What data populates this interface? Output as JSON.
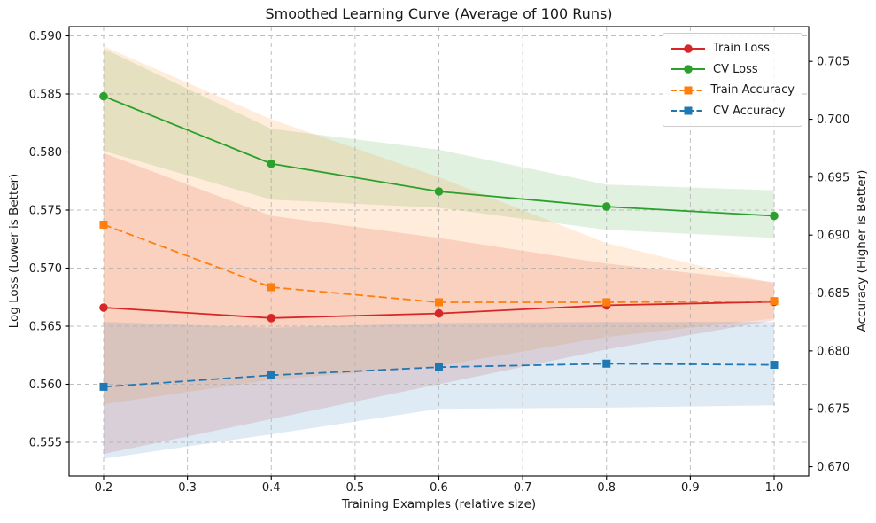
{
  "figure": {
    "title": "Smoothed Learning Curve (Average of 100 Runs)",
    "xlabel": "Training Examples (relative size)",
    "ylabel_left": "Log Loss (Lower is Better)",
    "ylabel_right": "Accuracy (Higher is Better)"
  },
  "colors": {
    "train_loss": "#d62728",
    "cv_loss": "#2ca02c",
    "train_accuracy": "#ff7f0e",
    "cv_accuracy": "#1f77b4",
    "grid": "#b0b0b0",
    "spine": "#000000",
    "text": "#1a1a1a",
    "legend_border": "#cccccc"
  },
  "chart_data": {
    "type": "line",
    "title": "Smoothed Learning Curve (Average of 100 Runs)",
    "xlabel": "Training Examples (relative size)",
    "ylabel_left": "Log Loss (Lower is Better)",
    "ylabel_right": "Accuracy (Higher is Better)",
    "grid": true,
    "legend_position": "upper right",
    "band_alpha": 0.15,
    "x": [
      0.2,
      0.4,
      0.6,
      0.8,
      1.0
    ],
    "x_ticks": [
      0.2,
      0.3,
      0.4,
      0.5,
      0.6,
      0.7,
      0.8,
      0.9,
      1.0
    ],
    "x_range": [
      0.1588,
      1.0412
    ],
    "left_ticks": [
      0.555,
      0.56,
      0.565,
      0.57,
      0.575,
      0.58,
      0.585,
      0.59
    ],
    "left_range": [
      0.5521,
      0.5908
    ],
    "right_ticks": [
      0.67,
      0.675,
      0.68,
      0.685,
      0.69,
      0.695,
      0.7,
      0.705
    ],
    "right_range": [
      0.6692,
      0.708
    ],
    "tick_decimals": {
      "x": 1,
      "left": 3,
      "right": 3
    },
    "series": [
      {
        "name": "Train Loss",
        "axis": "left",
        "color": "#d62728",
        "line": "solid",
        "marker": "circle",
        "values": [
          0.5666,
          0.5657,
          0.5661,
          0.5668,
          0.5671
        ],
        "band_upper": [
          0.5799,
          0.5745,
          0.5726,
          0.5704,
          0.5688
        ],
        "band_lower": [
          0.554,
          0.557,
          0.56,
          0.563,
          0.5655
        ]
      },
      {
        "name": "CV Loss",
        "axis": "left",
        "color": "#2ca02c",
        "line": "solid",
        "marker": "circle",
        "values": [
          0.5848,
          0.579,
          0.5766,
          0.5753,
          0.5745
        ],
        "band_upper": [
          0.5889,
          0.582,
          0.5802,
          0.5772,
          0.5767
        ],
        "band_lower": [
          0.5801,
          0.5759,
          0.5752,
          0.5733,
          0.5726
        ]
      },
      {
        "name": "Train Accuracy",
        "axis": "right",
        "color": "#ff7f0e",
        "line": "dashed",
        "marker": "square",
        "values": [
          0.6909,
          0.6855,
          0.6842,
          0.6842,
          0.6843
        ],
        "band_upper": [
          0.7063,
          0.7,
          0.695,
          0.6893,
          0.6858
        ],
        "band_lower": [
          0.6754,
          0.6775,
          0.6787,
          0.6812,
          0.6828
        ]
      },
      {
        "name": "CV Accuracy",
        "axis": "right",
        "color": "#1f77b4",
        "line": "dashed",
        "marker": "square",
        "values": [
          0.6769,
          0.6779,
          0.6786,
          0.6789,
          0.6788
        ],
        "band_upper": [
          0.6825,
          0.682,
          0.6824,
          0.6825,
          0.6825
        ],
        "band_lower": [
          0.6707,
          0.6728,
          0.675,
          0.6751,
          0.6753
        ]
      }
    ]
  }
}
